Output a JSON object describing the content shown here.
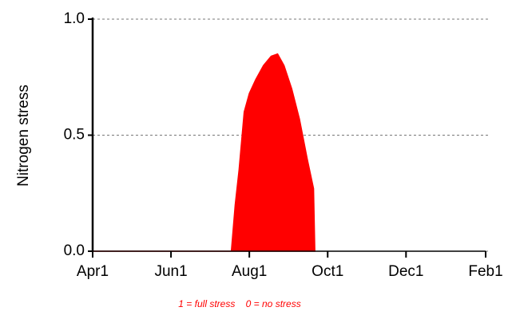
{
  "chart_data": {
    "type": "area",
    "ylabel": "Nitrogen stress",
    "annotation": "1 = full stress    0 = no stress",
    "x": [
      0,
      108,
      111,
      114,
      118,
      122,
      127,
      133,
      139,
      144,
      149,
      155,
      161,
      167,
      172,
      173
    ],
    "series": [
      {
        "name": "Nitrogen stress",
        "color": "#ff0000",
        "values": [
          0,
          0,
          0.2,
          0.35,
          0.6,
          0.68,
          0.74,
          0.8,
          0.84,
          0.85,
          0.8,
          0.7,
          0.57,
          0.4,
          0.27,
          0
        ]
      }
    ],
    "xlim": [
      0,
      306
    ],
    "xticks": [
      {
        "value": 0,
        "label": "Apr1"
      },
      {
        "value": 61,
        "label": "Jun1"
      },
      {
        "value": 122,
        "label": "Aug1"
      },
      {
        "value": 183,
        "label": "Oct1"
      },
      {
        "value": 244,
        "label": "Dec1"
      },
      {
        "value": 306,
        "label": "Feb1"
      }
    ],
    "ylim": [
      0,
      1
    ],
    "yticks": [
      {
        "value": 0,
        "label": "0.0"
      },
      {
        "value": 0.5,
        "label": "0.5"
      },
      {
        "value": 1,
        "label": "1.0"
      }
    ],
    "grid": true
  }
}
